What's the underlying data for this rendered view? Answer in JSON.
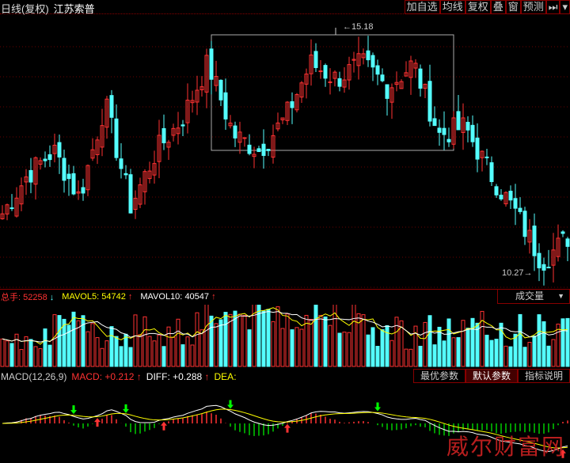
{
  "header": {
    "period": "日线(复权)",
    "stock_name": "江苏索普"
  },
  "toolbar": [
    "加自选",
    "均线",
    "复权",
    "叠",
    "窗",
    "预测",
    "⏭",
    "▾"
  ],
  "price_chart": {
    "high_label": "15.18",
    "low_label": "10.27",
    "high": 15.18,
    "low": 10.27,
    "anchors": [
      11.46,
      12.25,
      12.72,
      11.77,
      13.67,
      11.61,
      12.72,
      13.36,
      14.47,
      13.04,
      12.72,
      13.36,
      14.47,
      14.15,
      14.47,
      13.99,
      14.47,
      13.04,
      13.2,
      12.25,
      11.46,
      10.5,
      10.98
    ],
    "up_color": "#ff3232",
    "down_color": "#54ffff"
  },
  "volume": {
    "total_label": "总手:",
    "total": "52258",
    "mavol5_label": "MAVOL5:",
    "mavol5": "54742",
    "mavol10_label": "MAVOL10:",
    "mavol10": "40547",
    "selector": "成交量"
  },
  "macd": {
    "name": "MACD(12,26,9)",
    "macd_label": "MACD:",
    "macd": "+0.212",
    "diff_label": "DIFF:",
    "diff": "+0.288",
    "dea_label": "DEA:",
    "dea": "",
    "buttons": [
      "最优参数",
      "默认参数",
      "指标说明"
    ]
  },
  "watermark": "威尔财富网"
}
